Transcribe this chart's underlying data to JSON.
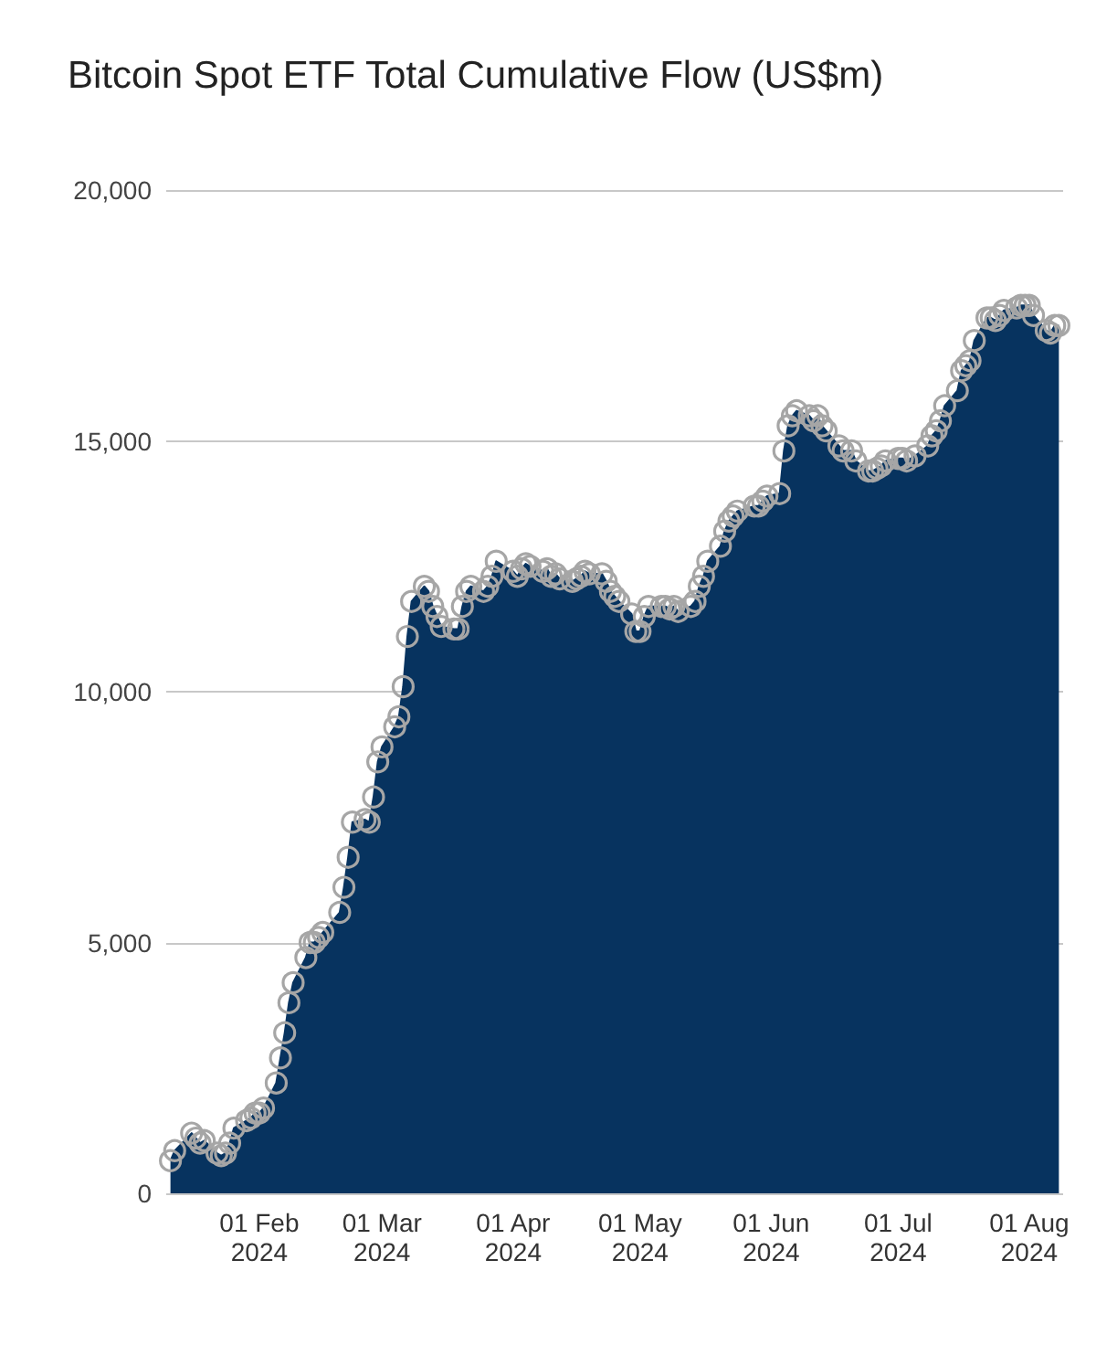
{
  "chart_data": {
    "type": "area",
    "title": "Bitcoin Spot ETF Total Cumulative Flow (US$m)",
    "x": [
      "2024-01-11",
      "2024-01-12",
      "2024-01-16",
      "2024-01-17",
      "2024-01-18",
      "2024-01-19",
      "2024-01-22",
      "2024-01-23",
      "2024-01-24",
      "2024-01-25",
      "2024-01-26",
      "2024-01-29",
      "2024-01-30",
      "2024-01-31",
      "2024-02-01",
      "2024-02-02",
      "2024-02-05",
      "2024-02-06",
      "2024-02-07",
      "2024-02-08",
      "2024-02-09",
      "2024-02-12",
      "2024-02-13",
      "2024-02-14",
      "2024-02-15",
      "2024-02-16",
      "2024-02-20",
      "2024-02-21",
      "2024-02-22",
      "2024-02-23",
      "2024-02-26",
      "2024-02-27",
      "2024-02-28",
      "2024-02-29",
      "2024-03-01",
      "2024-03-04",
      "2024-03-05",
      "2024-03-06",
      "2024-03-07",
      "2024-03-08",
      "2024-03-11",
      "2024-03-12",
      "2024-03-13",
      "2024-03-14",
      "2024-03-15",
      "2024-03-18",
      "2024-03-19",
      "2024-03-20",
      "2024-03-21",
      "2024-03-22",
      "2024-03-25",
      "2024-03-26",
      "2024-03-27",
      "2024-03-28",
      "2024-04-01",
      "2024-04-02",
      "2024-04-03",
      "2024-04-04",
      "2024-04-05",
      "2024-04-08",
      "2024-04-09",
      "2024-04-10",
      "2024-04-11",
      "2024-04-12",
      "2024-04-15",
      "2024-04-16",
      "2024-04-17",
      "2024-04-18",
      "2024-04-19",
      "2024-04-22",
      "2024-04-23",
      "2024-04-24",
      "2024-04-25",
      "2024-04-26",
      "2024-04-29",
      "2024-04-30",
      "2024-05-01",
      "2024-05-02",
      "2024-05-03",
      "2024-05-06",
      "2024-05-07",
      "2024-05-08",
      "2024-05-09",
      "2024-05-10",
      "2024-05-13",
      "2024-05-14",
      "2024-05-15",
      "2024-05-16",
      "2024-05-17",
      "2024-05-20",
      "2024-05-21",
      "2024-05-22",
      "2024-05-23",
      "2024-05-24",
      "2024-05-28",
      "2024-05-29",
      "2024-05-30",
      "2024-05-31",
      "2024-06-03",
      "2024-06-04",
      "2024-06-05",
      "2024-06-06",
      "2024-06-07",
      "2024-06-10",
      "2024-06-11",
      "2024-06-12",
      "2024-06-13",
      "2024-06-14",
      "2024-06-17",
      "2024-06-18",
      "2024-06-20",
      "2024-06-21",
      "2024-06-24",
      "2024-06-25",
      "2024-06-26",
      "2024-06-27",
      "2024-06-28",
      "2024-07-01",
      "2024-07-02",
      "2024-07-03",
      "2024-07-05",
      "2024-07-08",
      "2024-07-09",
      "2024-07-10",
      "2024-07-11",
      "2024-07-12",
      "2024-07-15",
      "2024-07-16",
      "2024-07-17",
      "2024-07-18",
      "2024-07-19",
      "2024-07-22",
      "2024-07-23",
      "2024-07-24",
      "2024-07-25",
      "2024-07-26",
      "2024-07-29",
      "2024-07-30",
      "2024-07-31",
      "2024-08-01",
      "2024-08-02",
      "2024-08-05",
      "2024-08-06",
      "2024-08-07",
      "2024-08-08"
    ],
    "series": [
      {
        "color": "#07335f",
        "values": [
          650,
          850,
          1200,
          1100,
          1000,
          1050,
          800,
          750,
          800,
          1000,
          1300,
          1450,
          1500,
          1600,
          1600,
          1700,
          2200,
          2700,
          3200,
          3800,
          4200,
          4700,
          5000,
          5000,
          5100,
          5200,
          5600,
          6100,
          6700,
          7400,
          7450,
          7400,
          7900,
          8600,
          8900,
          9300,
          9500,
          10100,
          11100,
          11800,
          12100,
          12000,
          11700,
          11500,
          11300,
          11250,
          11250,
          11700,
          12000,
          12100,
          12000,
          12100,
          12300,
          12600,
          12400,
          12300,
          12450,
          12550,
          12500,
          12400,
          12450,
          12300,
          12350,
          12250,
          12200,
          12250,
          12300,
          12400,
          12350,
          12350,
          12200,
          12000,
          11900,
          11800,
          11550,
          11200,
          11200,
          11500,
          11700,
          11700,
          11700,
          11650,
          11700,
          11600,
          11700,
          11800,
          12100,
          12300,
          12600,
          12900,
          13200,
          13400,
          13500,
          13600,
          13700,
          13700,
          13800,
          13900,
          13950,
          14800,
          15300,
          15500,
          15600,
          15500,
          15400,
          15500,
          15300,
          15200,
          14900,
          14800,
          14800,
          14600,
          14400,
          14400,
          14450,
          14500,
          14600,
          14650,
          14650,
          14600,
          14700,
          14900,
          15100,
          15200,
          15400,
          15700,
          16000,
          16400,
          16500,
          16600,
          17000,
          17450,
          17450,
          17400,
          17500,
          17600,
          17650,
          17700,
          17700,
          17700,
          17500,
          17200,
          17150,
          17300,
          17300
        ]
      }
    ],
    "xlim": [
      "2024-01-10",
      "2024-08-09"
    ],
    "xticks": [
      {
        "value": "2024-02-01",
        "label": "01 Feb\n2024"
      },
      {
        "value": "2024-03-01",
        "label": "01 Mar\n2024"
      },
      {
        "value": "2024-04-01",
        "label": "01 Apr\n2024"
      },
      {
        "value": "2024-05-01",
        "label": "01 May\n2024"
      },
      {
        "value": "2024-06-01",
        "label": "01 Jun\n2024"
      },
      {
        "value": "2024-07-01",
        "label": "01 Jul\n2024"
      },
      {
        "value": "2024-08-01",
        "label": "01 Aug\n2024"
      }
    ],
    "ylim": [
      0,
      20000
    ],
    "yticks": [
      {
        "value": 0,
        "label": "0"
      },
      {
        "value": 5000,
        "label": "5,000"
      },
      {
        "value": 10000,
        "label": "10,000"
      },
      {
        "value": 15000,
        "label": "15,000"
      },
      {
        "value": 20000,
        "label": "20,000"
      }
    ],
    "grid": "y",
    "marker": "circle"
  }
}
